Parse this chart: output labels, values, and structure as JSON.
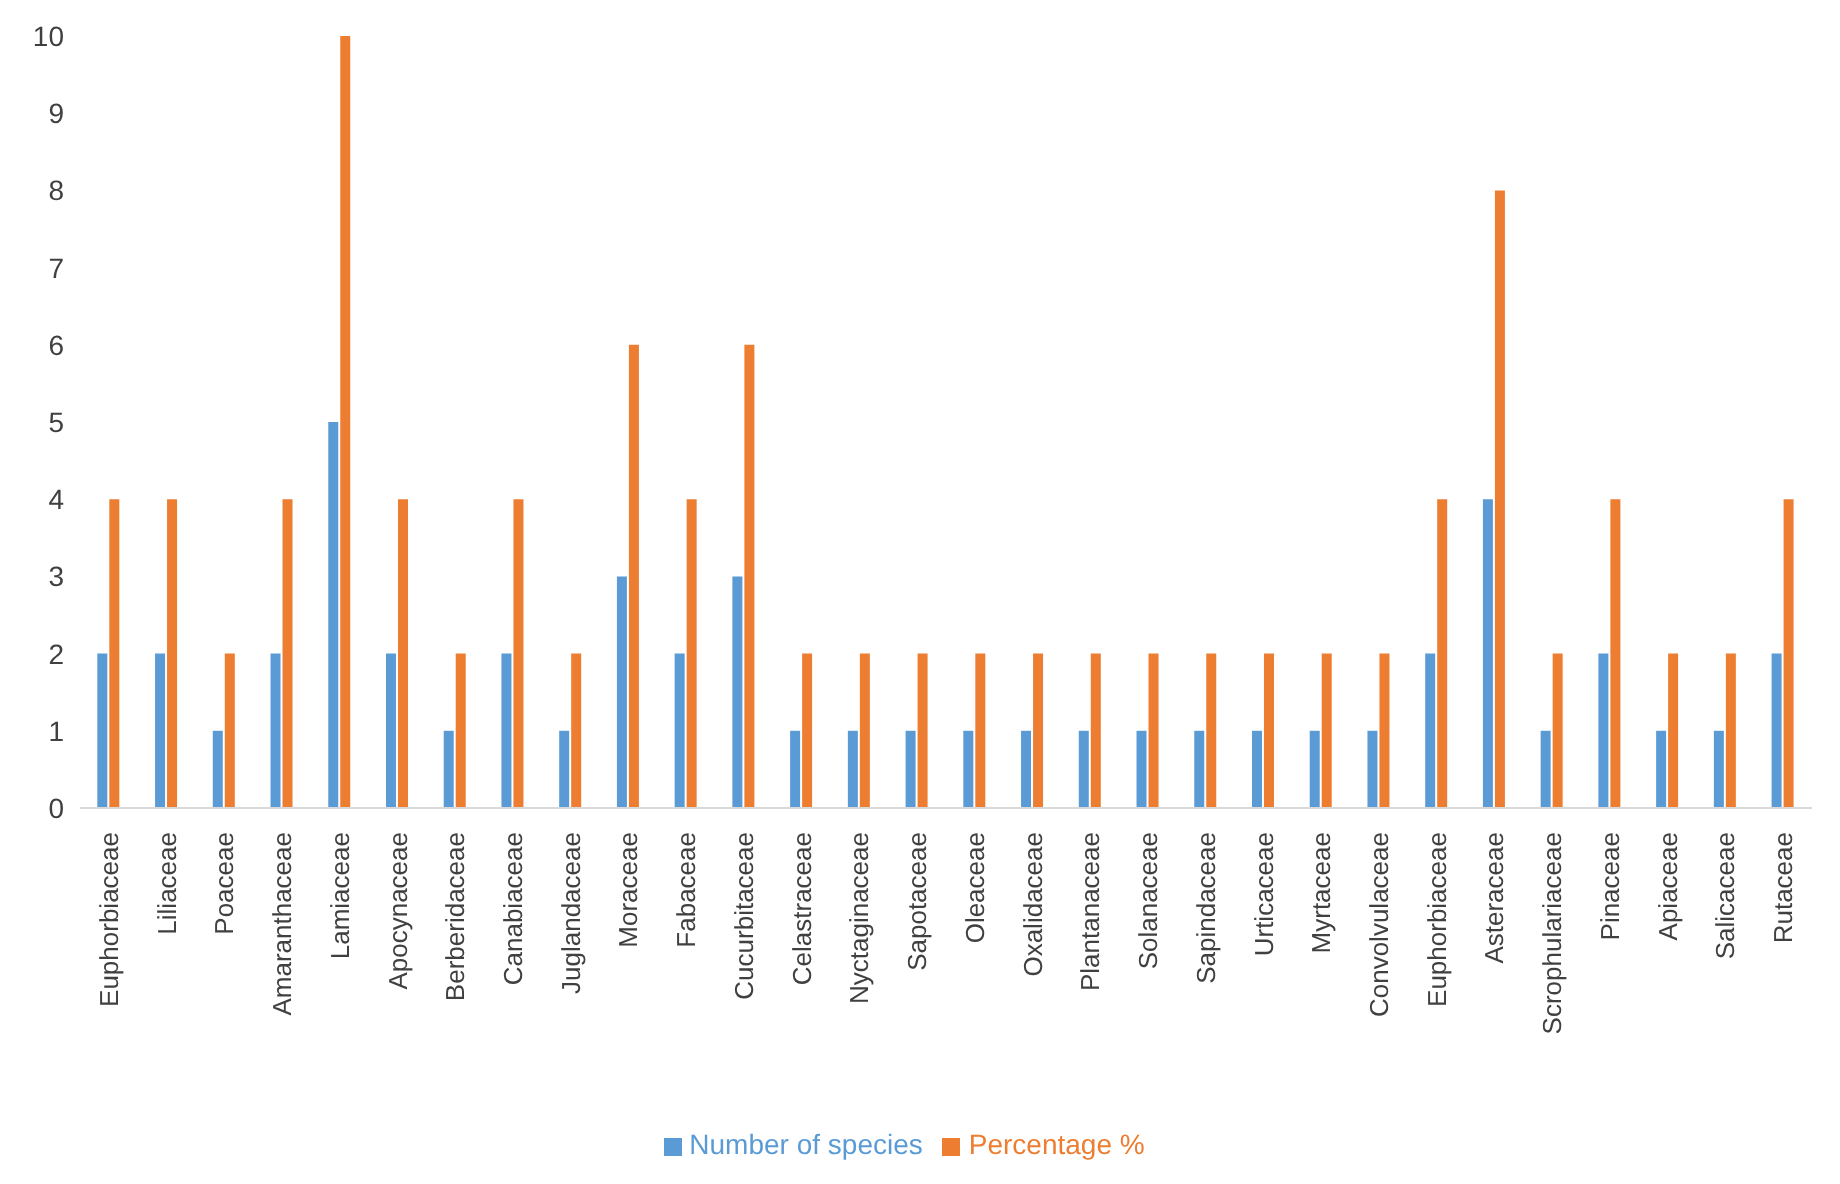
{
  "chart_data": {
    "type": "bar",
    "categories": [
      "Euphorbiaceae",
      "Liliaceae",
      "Poaceae",
      "Amaranthaceae",
      "Lamiaceae",
      "Apocynaceae",
      "Berberidaceae",
      "Canabiaceae",
      "Juglandaceae",
      "Moraceae",
      "Fabaceae",
      "Cucurbitaceae",
      "Celastraceae",
      "Nyctaginaceae",
      "Sapotaceae",
      "Oleaceae",
      "Oxalidaceae",
      "Plantanaceae",
      "Solanaceae",
      "Sapindaceae",
      "Urticaceae",
      "Myrtaceae",
      "Convolvulaceae",
      "Euphorbiaceae",
      "Asteraceae",
      "Scrophulariaceae",
      "Pinaceae",
      "Apiaceae",
      "Salicaceae",
      "Rutaceae"
    ],
    "series": [
      {
        "name": "Number of species",
        "color": "#5b9bd5",
        "values": [
          2,
          2,
          1,
          2,
          5,
          2,
          1,
          2,
          1,
          3,
          2,
          3,
          1,
          1,
          1,
          1,
          1,
          1,
          1,
          1,
          1,
          1,
          1,
          2,
          4,
          1,
          2,
          1,
          1,
          2
        ]
      },
      {
        "name": "Percentage %",
        "color": "#ed7d31",
        "values": [
          4,
          4,
          2,
          4,
          10,
          4,
          2,
          4,
          2,
          6,
          4,
          6,
          2,
          2,
          2,
          2,
          2,
          2,
          2,
          2,
          2,
          2,
          2,
          4,
          8,
          2,
          4,
          2,
          2,
          4
        ]
      }
    ],
    "ylim": [
      0,
      10
    ],
    "yticks": [
      0,
      1,
      2,
      3,
      4,
      5,
      6,
      7,
      8,
      9,
      10
    ],
    "grid": false,
    "legend": "bottom"
  }
}
